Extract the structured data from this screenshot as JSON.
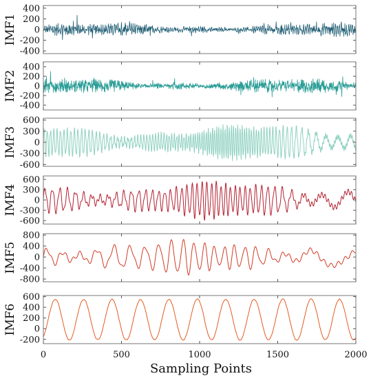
{
  "chart_data": {
    "type": "line",
    "xlabel": "Sampling Points",
    "xlim": [
      0,
      2000
    ],
    "xticks": [
      "0",
      "500",
      "1000",
      "1500",
      "2000"
    ],
    "grid": false,
    "panels": [
      {
        "name": "IMF1",
        "color": "#1f5d73",
        "ylim": [
          -450,
          450
        ],
        "yticks": [
          400,
          200,
          0,
          -200,
          -400
        ],
        "ytick_labels": [
          "400",
          "200",
          "0",
          "-200",
          "-400"
        ],
        "period": 2.4,
        "amplitude": 120,
        "form": "noise"
      },
      {
        "name": "IMF2",
        "color": "#2a9d96",
        "ylim": [
          -500,
          500
        ],
        "yticks": [
          400,
          200,
          0,
          -200,
          -400
        ],
        "ytick_labels": [
          "400",
          "200",
          "0",
          "-200",
          "-400"
        ],
        "period": 5,
        "amplitude": 150,
        "form": "noise"
      },
      {
        "name": "IMF3",
        "color": "#8fd1bf",
        "ylim": [
          -650,
          650
        ],
        "yticks": [
          600,
          300,
          0,
          -300,
          -600
        ],
        "ytick_labels": [
          "600",
          "300",
          "0",
          "-300",
          "-600"
        ],
        "period": 20,
        "amplitude": 380,
        "form": "oscillation"
      },
      {
        "name": "IMF4",
        "color": "#b32030",
        "ylim": [
          -700,
          700
        ],
        "yticks": [
          600,
          300,
          0,
          -300,
          -600
        ],
        "ytick_labels": [
          "600",
          "300",
          "0",
          "-300",
          "-600"
        ],
        "period": 45,
        "amplitude": 420,
        "form": "oscillation"
      },
      {
        "name": "IMF5",
        "color": "#d03a24",
        "ylim": [
          -900,
          850
        ],
        "yticks": [
          800,
          400,
          0,
          -400,
          -800
        ],
        "ytick_labels": [
          "800",
          "400",
          "0",
          "-400",
          "-800"
        ],
        "period": 95,
        "amplitude": 480,
        "form": "oscillation"
      },
      {
        "name": "IMF6",
        "color": "#e35b1f",
        "ylim": [
          -280,
          620
        ],
        "yticks": [
          600,
          400,
          200,
          0,
          -200
        ],
        "ytick_labels": [
          "600",
          "400",
          "200",
          "0",
          "-200"
        ],
        "period": 182,
        "amplitude": 380,
        "offset": 170,
        "form": "smooth"
      }
    ]
  }
}
